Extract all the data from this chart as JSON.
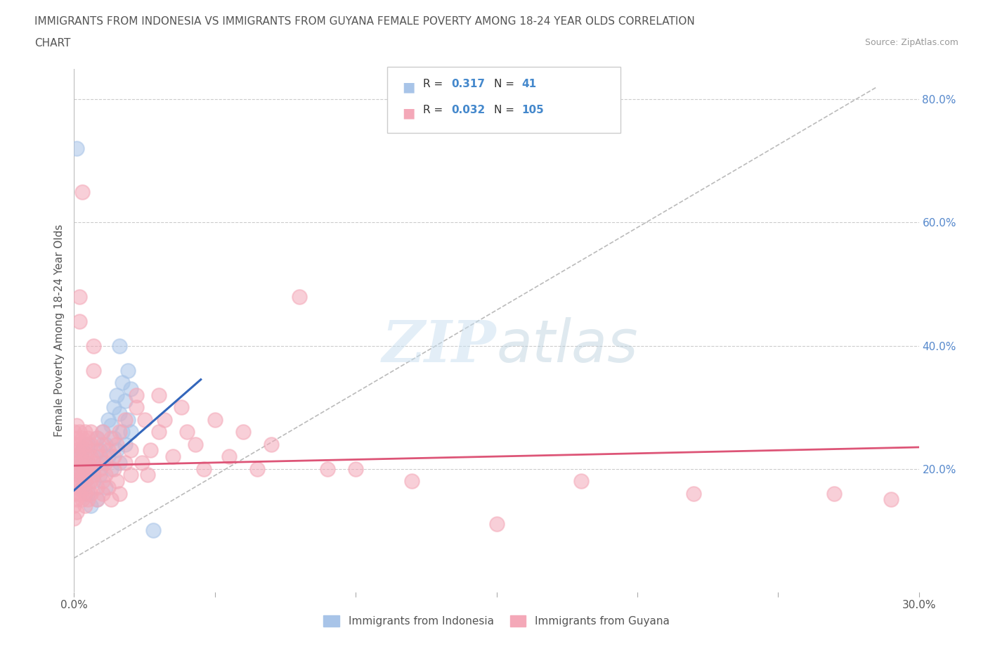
{
  "title_line1": "IMMIGRANTS FROM INDONESIA VS IMMIGRANTS FROM GUYANA FEMALE POVERTY AMONG 18-24 YEAR OLDS CORRELATION",
  "title_line2": "CHART",
  "source_text": "Source: ZipAtlas.com",
  "ylabel": "Female Poverty Among 18-24 Year Olds",
  "x_min": 0.0,
  "x_max": 0.3,
  "y_min": 0.0,
  "y_max": 0.85,
  "x_ticks": [
    0.0,
    0.05,
    0.1,
    0.15,
    0.2,
    0.25,
    0.3
  ],
  "y_ticks": [
    0.0,
    0.2,
    0.4,
    0.6,
    0.8
  ],
  "indonesia_color": "#a8c4e8",
  "guyana_color": "#f4a8b8",
  "indonesia_line_color": "#3366bb",
  "guyana_line_color": "#dd5577",
  "grey_line_color": "#bbbbbb",
  "background_color": "#ffffff",
  "indonesia_scatter": [
    [
      0.001,
      0.22
    ],
    [
      0.002,
      0.19
    ],
    [
      0.003,
      0.17
    ],
    [
      0.003,
      0.23
    ],
    [
      0.004,
      0.21
    ],
    [
      0.004,
      0.18
    ],
    [
      0.005,
      0.24
    ],
    [
      0.005,
      0.16
    ],
    [
      0.006,
      0.2
    ],
    [
      0.006,
      0.14
    ],
    [
      0.007,
      0.22
    ],
    [
      0.007,
      0.18
    ],
    [
      0.008,
      0.25
    ],
    [
      0.008,
      0.15
    ],
    [
      0.009,
      0.23
    ],
    [
      0.009,
      0.19
    ],
    [
      0.01,
      0.26
    ],
    [
      0.01,
      0.21
    ],
    [
      0.011,
      0.24
    ],
    [
      0.011,
      0.17
    ],
    [
      0.012,
      0.28
    ],
    [
      0.012,
      0.22
    ],
    [
      0.013,
      0.27
    ],
    [
      0.013,
      0.2
    ],
    [
      0.014,
      0.3
    ],
    [
      0.014,
      0.25
    ],
    [
      0.015,
      0.32
    ],
    [
      0.015,
      0.23
    ],
    [
      0.016,
      0.29
    ],
    [
      0.016,
      0.21
    ],
    [
      0.017,
      0.34
    ],
    [
      0.017,
      0.26
    ],
    [
      0.018,
      0.31
    ],
    [
      0.018,
      0.24
    ],
    [
      0.019,
      0.36
    ],
    [
      0.019,
      0.28
    ],
    [
      0.02,
      0.33
    ],
    [
      0.02,
      0.26
    ],
    [
      0.001,
      0.72
    ],
    [
      0.016,
      0.4
    ],
    [
      0.028,
      0.1
    ]
  ],
  "guyana_scatter": [
    [
      0.0,
      0.22
    ],
    [
      0.0,
      0.2
    ],
    [
      0.0,
      0.18
    ],
    [
      0.0,
      0.16
    ],
    [
      0.0,
      0.24
    ],
    [
      0.0,
      0.14
    ],
    [
      0.0,
      0.26
    ],
    [
      0.0,
      0.12
    ],
    [
      0.001,
      0.23
    ],
    [
      0.001,
      0.21
    ],
    [
      0.001,
      0.19
    ],
    [
      0.001,
      0.17
    ],
    [
      0.001,
      0.25
    ],
    [
      0.001,
      0.15
    ],
    [
      0.001,
      0.27
    ],
    [
      0.001,
      0.13
    ],
    [
      0.002,
      0.22
    ],
    [
      0.002,
      0.2
    ],
    [
      0.002,
      0.18
    ],
    [
      0.002,
      0.24
    ],
    [
      0.002,
      0.16
    ],
    [
      0.002,
      0.26
    ],
    [
      0.002,
      0.44
    ],
    [
      0.002,
      0.48
    ],
    [
      0.003,
      0.21
    ],
    [
      0.003,
      0.19
    ],
    [
      0.003,
      0.23
    ],
    [
      0.003,
      0.17
    ],
    [
      0.003,
      0.25
    ],
    [
      0.003,
      0.15
    ],
    [
      0.003,
      0.65
    ],
    [
      0.004,
      0.22
    ],
    [
      0.004,
      0.2
    ],
    [
      0.004,
      0.18
    ],
    [
      0.004,
      0.24
    ],
    [
      0.004,
      0.16
    ],
    [
      0.004,
      0.26
    ],
    [
      0.004,
      0.14
    ],
    [
      0.005,
      0.21
    ],
    [
      0.005,
      0.19
    ],
    [
      0.005,
      0.23
    ],
    [
      0.005,
      0.17
    ],
    [
      0.005,
      0.25
    ],
    [
      0.005,
      0.15
    ],
    [
      0.006,
      0.22
    ],
    [
      0.006,
      0.2
    ],
    [
      0.006,
      0.18
    ],
    [
      0.006,
      0.24
    ],
    [
      0.006,
      0.16
    ],
    [
      0.006,
      0.26
    ],
    [
      0.007,
      0.36
    ],
    [
      0.007,
      0.4
    ],
    [
      0.007,
      0.21
    ],
    [
      0.007,
      0.19
    ],
    [
      0.008,
      0.23
    ],
    [
      0.008,
      0.17
    ],
    [
      0.008,
      0.25
    ],
    [
      0.008,
      0.15
    ],
    [
      0.009,
      0.22
    ],
    [
      0.009,
      0.2
    ],
    [
      0.01,
      0.18
    ],
    [
      0.01,
      0.24
    ],
    [
      0.01,
      0.16
    ],
    [
      0.01,
      0.26
    ],
    [
      0.011,
      0.21
    ],
    [
      0.011,
      0.19
    ],
    [
      0.012,
      0.23
    ],
    [
      0.012,
      0.17
    ],
    [
      0.013,
      0.25
    ],
    [
      0.013,
      0.15
    ],
    [
      0.014,
      0.22
    ],
    [
      0.014,
      0.2
    ],
    [
      0.015,
      0.18
    ],
    [
      0.015,
      0.24
    ],
    [
      0.016,
      0.16
    ],
    [
      0.016,
      0.26
    ],
    [
      0.018,
      0.21
    ],
    [
      0.018,
      0.28
    ],
    [
      0.02,
      0.19
    ],
    [
      0.02,
      0.23
    ],
    [
      0.022,
      0.32
    ],
    [
      0.022,
      0.3
    ],
    [
      0.024,
      0.21
    ],
    [
      0.025,
      0.28
    ],
    [
      0.026,
      0.19
    ],
    [
      0.027,
      0.23
    ],
    [
      0.03,
      0.26
    ],
    [
      0.03,
      0.32
    ],
    [
      0.032,
      0.28
    ],
    [
      0.035,
      0.22
    ],
    [
      0.038,
      0.3
    ],
    [
      0.04,
      0.26
    ],
    [
      0.043,
      0.24
    ],
    [
      0.046,
      0.2
    ],
    [
      0.05,
      0.28
    ],
    [
      0.055,
      0.22
    ],
    [
      0.06,
      0.26
    ],
    [
      0.065,
      0.2
    ],
    [
      0.07,
      0.24
    ],
    [
      0.08,
      0.48
    ],
    [
      0.09,
      0.2
    ],
    [
      0.1,
      0.2
    ],
    [
      0.12,
      0.18
    ],
    [
      0.15,
      0.11
    ],
    [
      0.18,
      0.18
    ],
    [
      0.22,
      0.16
    ],
    [
      0.27,
      0.16
    ],
    [
      0.29,
      0.15
    ]
  ],
  "indo_trend_x": [
    0.0,
    0.045
  ],
  "indo_trend_y": [
    0.165,
    0.345
  ],
  "guyana_trend_x": [
    0.0,
    0.3
  ],
  "guyana_trend_y": [
    0.205,
    0.235
  ],
  "grey_trend_x": [
    0.0,
    0.285
  ],
  "grey_trend_y": [
    0.055,
    0.82
  ]
}
